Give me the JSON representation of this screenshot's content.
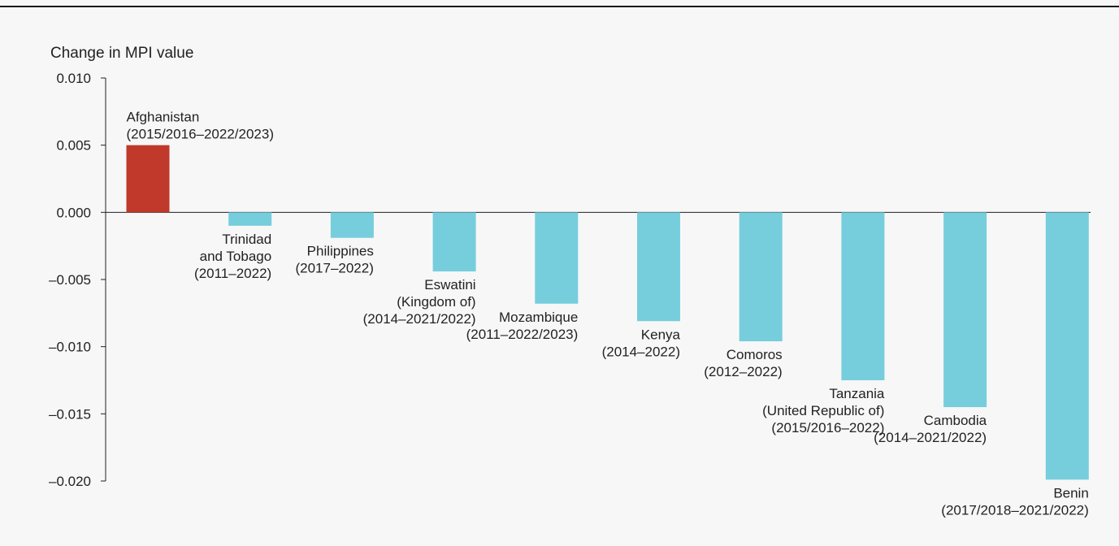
{
  "chart_data": {
    "type": "bar",
    "title": "",
    "xlabel": "",
    "ylabel": "Change in MPI value",
    "ylim": [
      -0.02,
      0.01
    ],
    "yticks": [
      0.01,
      0.005,
      0.0,
      -0.005,
      -0.01,
      -0.015,
      -0.02
    ],
    "ytick_labels": [
      "0.010",
      "0.005",
      "0.000",
      "–0.005",
      "–0.010",
      "–0.015",
      "–0.020"
    ],
    "grid": false,
    "colors": {
      "positive": "#c0392b",
      "negative": "#76cedd"
    },
    "categories": [
      [
        "Afghanistan",
        "(2015/2016–2022/2023)"
      ],
      [
        "Trinidad",
        "and Tobago",
        "(2011–2022)"
      ],
      [
        "Philippines",
        "(2017–2022)"
      ],
      [
        "Eswatini",
        "(Kingdom of)",
        "(2014–2021/2022)"
      ],
      [
        "Mozambique",
        "(2011–2022/2023)"
      ],
      [
        "Kenya",
        "(2014–2022)"
      ],
      [
        "Comoros",
        "(2012–2022)"
      ],
      [
        "Tanzania",
        "(United Republic of)",
        "(2015/2016–2022)"
      ],
      [
        "Cambodia",
        "(2014–2021/2022)"
      ],
      [
        "Benin",
        "(2017/2018–2021/2022)"
      ]
    ],
    "values": [
      0.005,
      -0.001,
      -0.0019,
      -0.0044,
      -0.0068,
      -0.0081,
      -0.0096,
      -0.0125,
      -0.0145,
      -0.0199
    ]
  }
}
